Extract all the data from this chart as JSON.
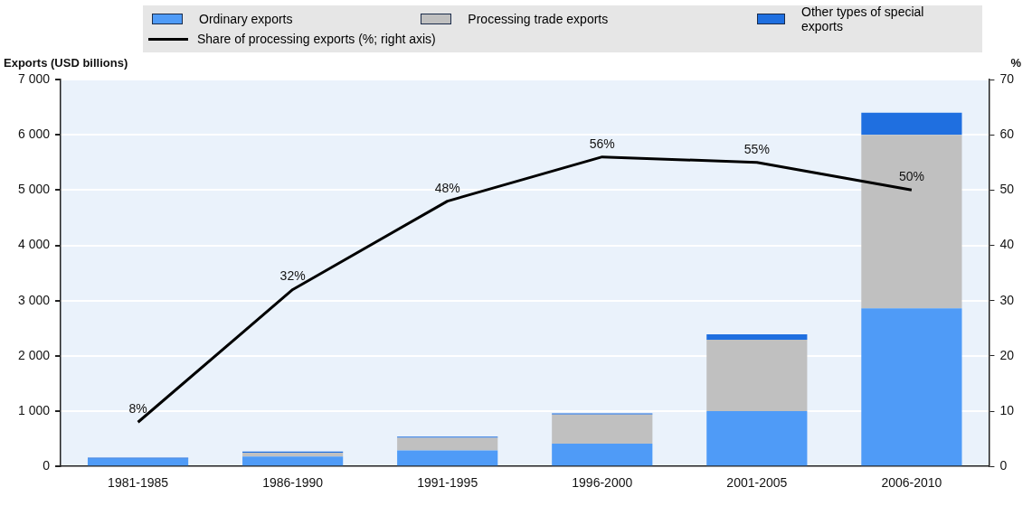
{
  "chart_data": {
    "type": "bar",
    "stacked": true,
    "categories": [
      "1981-1985",
      "1986-1990",
      "1991-1995",
      "1996-2000",
      "2001-2005",
      "2006-2010"
    ],
    "series": [
      {
        "name": "Ordinary exports",
        "color": "#4f9bf7",
        "values": [
          140,
          180,
          290,
          410,
          1000,
          2860
        ]
      },
      {
        "name": "Processing trade exports",
        "color": "#c0c0c0",
        "values": [
          null,
          70,
          230,
          530,
          1290,
          3140
        ]
      },
      {
        "name": "Other types of special exports",
        "color": "#1f6fe0",
        "values": [
          20,
          20,
          20,
          20,
          100,
          400
        ]
      },
      {
        "name": "Share of processing exports (%; right axis)",
        "color": "#000000",
        "type": "line",
        "axis": "y2",
        "values": [
          8,
          32,
          48,
          56,
          55,
          50
        ],
        "value_labels": [
          "8%",
          "32%",
          "48%",
          "56%",
          "55%",
          "50%"
        ]
      }
    ],
    "ylabel": "Exports (USD billions)",
    "y2label": "%",
    "ylim": [
      0,
      7000
    ],
    "yticks": [
      {
        "value": 0,
        "label": "0"
      },
      {
        "value": 1000,
        "label": "1 000"
      },
      {
        "value": 2000,
        "label": "2 000"
      },
      {
        "value": 3000,
        "label": "3 000"
      },
      {
        "value": 4000,
        "label": "4 000"
      },
      {
        "value": 5000,
        "label": "5 000"
      },
      {
        "value": 6000,
        "label": "6 000"
      },
      {
        "value": 7000,
        "label": "7 000"
      }
    ],
    "y2lim": [
      0,
      70
    ],
    "y2ticks": [
      0,
      10,
      20,
      30,
      40,
      50,
      60,
      70
    ],
    "grid": "y",
    "legend": "top",
    "marker": "none",
    "line_style": "solid"
  }
}
